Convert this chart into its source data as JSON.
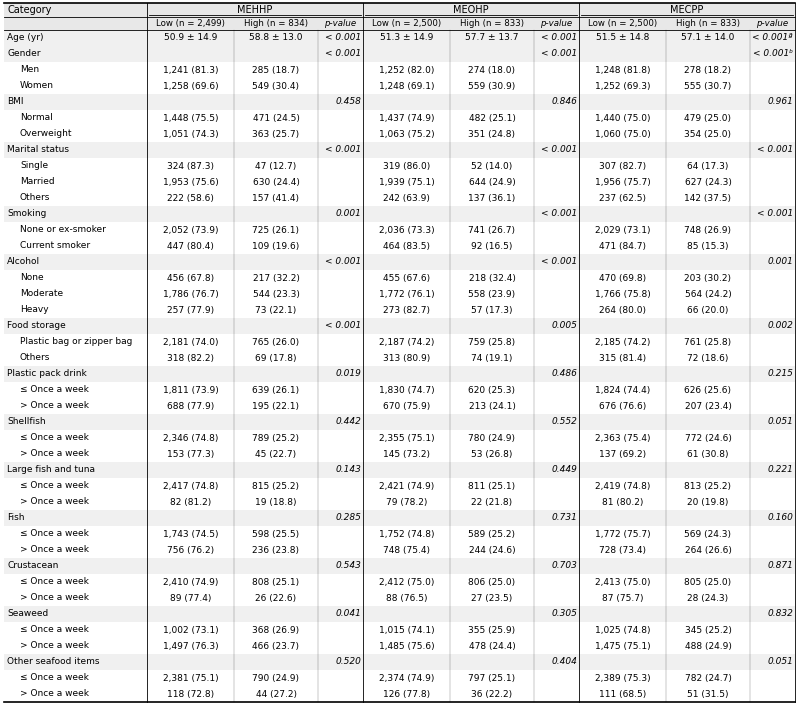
{
  "group_headers": [
    "MEHHP",
    "MEOHP",
    "MECPP"
  ],
  "sub_headers": [
    "Low (n = 2,499)",
    "High (n = 834)",
    "p-value",
    "Low (n = 2,500)",
    "High (n = 833)",
    "p-value",
    "Low (n = 2,500)",
    "High (n = 833)",
    "p-value"
  ],
  "rows": [
    {
      "label": "Age (yr)",
      "indent": 0,
      "data": [
        "50.9 ± 14.9",
        "58.8 ± 13.0",
        "< 0.001",
        "51.3 ± 14.9",
        "57.7 ± 13.7",
        "< 0.001",
        "51.5 ± 14.8",
        "57.1 ± 14.0",
        "< 0.001ª"
      ]
    },
    {
      "label": "Gender",
      "indent": 0,
      "data": [
        "",
        "",
        "< 0.001",
        "",
        "",
        "< 0.001",
        "",
        "",
        "< 0.001ᵇ"
      ]
    },
    {
      "label": "Men",
      "indent": 1,
      "data": [
        "1,241 (81.3)",
        "285 (18.7)",
        "",
        "1,252 (82.0)",
        "274 (18.0)",
        "",
        "1,248 (81.8)",
        "278 (18.2)",
        ""
      ]
    },
    {
      "label": "Women",
      "indent": 1,
      "data": [
        "1,258 (69.6)",
        "549 (30.4)",
        "",
        "1,248 (69.1)",
        "559 (30.9)",
        "",
        "1,252 (69.3)",
        "555 (30.7)",
        ""
      ]
    },
    {
      "label": "BMI",
      "indent": 0,
      "data": [
        "",
        "",
        "0.458",
        "",
        "",
        "0.846",
        "",
        "",
        "0.961"
      ]
    },
    {
      "label": "Normal",
      "indent": 1,
      "data": [
        "1,448 (75.5)",
        "471 (24.5)",
        "",
        "1,437 (74.9)",
        "482 (25.1)",
        "",
        "1,440 (75.0)",
        "479 (25.0)",
        ""
      ]
    },
    {
      "label": "Overweight",
      "indent": 1,
      "data": [
        "1,051 (74.3)",
        "363 (25.7)",
        "",
        "1,063 (75.2)",
        "351 (24.8)",
        "",
        "1,060 (75.0)",
        "354 (25.0)",
        ""
      ]
    },
    {
      "label": "Marital status",
      "indent": 0,
      "data": [
        "",
        "",
        "< 0.001",
        "",
        "",
        "< 0.001",
        "",
        "",
        "< 0.001"
      ]
    },
    {
      "label": "Single",
      "indent": 1,
      "data": [
        "324 (87.3)",
        "47 (12.7)",
        "",
        "319 (86.0)",
        "52 (14.0)",
        "",
        "307 (82.7)",
        "64 (17.3)",
        ""
      ]
    },
    {
      "label": "Married",
      "indent": 1,
      "data": [
        "1,953 (75.6)",
        "630 (24.4)",
        "",
        "1,939 (75.1)",
        "644 (24.9)",
        "",
        "1,956 (75.7)",
        "627 (24.3)",
        ""
      ]
    },
    {
      "label": "Others",
      "indent": 1,
      "data": [
        "222 (58.6)",
        "157 (41.4)",
        "",
        "242 (63.9)",
        "137 (36.1)",
        "",
        "237 (62.5)",
        "142 (37.5)",
        ""
      ]
    },
    {
      "label": "Smoking",
      "indent": 0,
      "data": [
        "",
        "",
        "0.001",
        "",
        "",
        "< 0.001",
        "",
        "",
        "< 0.001"
      ]
    },
    {
      "label": "None or ex-smoker",
      "indent": 1,
      "data": [
        "2,052 (73.9)",
        "725 (26.1)",
        "",
        "2,036 (73.3)",
        "741 (26.7)",
        "",
        "2,029 (73.1)",
        "748 (26.9)",
        ""
      ]
    },
    {
      "label": "Current smoker",
      "indent": 1,
      "data": [
        "447 (80.4)",
        "109 (19.6)",
        "",
        "464 (83.5)",
        "92 (16.5)",
        "",
        "471 (84.7)",
        "85 (15.3)",
        ""
      ]
    },
    {
      "label": "Alcohol",
      "indent": 0,
      "data": [
        "",
        "",
        "< 0.001",
        "",
        "",
        "< 0.001",
        "",
        "",
        "0.001"
      ]
    },
    {
      "label": "None",
      "indent": 1,
      "data": [
        "456 (67.8)",
        "217 (32.2)",
        "",
        "455 (67.6)",
        "218 (32.4)",
        "",
        "470 (69.8)",
        "203 (30.2)",
        ""
      ]
    },
    {
      "label": "Moderate",
      "indent": 1,
      "data": [
        "1,786 (76.7)",
        "544 (23.3)",
        "",
        "1,772 (76.1)",
        "558 (23.9)",
        "",
        "1,766 (75.8)",
        "564 (24.2)",
        ""
      ]
    },
    {
      "label": "Heavy",
      "indent": 1,
      "data": [
        "257 (77.9)",
        "73 (22.1)",
        "",
        "273 (82.7)",
        "57 (17.3)",
        "",
        "264 (80.0)",
        "66 (20.0)",
        ""
      ]
    },
    {
      "label": "Food storage",
      "indent": 0,
      "data": [
        "",
        "",
        "< 0.001",
        "",
        "",
        "0.005",
        "",
        "",
        "0.002"
      ]
    },
    {
      "label": "Plastic bag or zipper bag",
      "indent": 1,
      "data": [
        "2,181 (74.0)",
        "765 (26.0)",
        "",
        "2,187 (74.2)",
        "759 (25.8)",
        "",
        "2,185 (74.2)",
        "761 (25.8)",
        ""
      ]
    },
    {
      "label": "Others",
      "indent": 1,
      "data": [
        "318 (82.2)",
        "69 (17.8)",
        "",
        "313 (80.9)",
        "74 (19.1)",
        "",
        "315 (81.4)",
        "72 (18.6)",
        ""
      ]
    },
    {
      "label": "Plastic pack drink",
      "indent": 0,
      "data": [
        "",
        "",
        "0.019",
        "",
        "",
        "0.486",
        "",
        "",
        "0.215"
      ]
    },
    {
      "label": "≤ Once a week",
      "indent": 1,
      "data": [
        "1,811 (73.9)",
        "639 (26.1)",
        "",
        "1,830 (74.7)",
        "620 (25.3)",
        "",
        "1,824 (74.4)",
        "626 (25.6)",
        ""
      ]
    },
    {
      "label": "> Once a week",
      "indent": 1,
      "data": [
        "688 (77.9)",
        "195 (22.1)",
        "",
        "670 (75.9)",
        "213 (24.1)",
        "",
        "676 (76.6)",
        "207 (23.4)",
        ""
      ]
    },
    {
      "label": "Shellfish",
      "indent": 0,
      "data": [
        "",
        "",
        "0.442",
        "",
        "",
        "0.552",
        "",
        "",
        "0.051"
      ]
    },
    {
      "label": "≤ Once a week",
      "indent": 1,
      "data": [
        "2,346 (74.8)",
        "789 (25.2)",
        "",
        "2,355 (75.1)",
        "780 (24.9)",
        "",
        "2,363 (75.4)",
        "772 (24.6)",
        ""
      ]
    },
    {
      "label": "> Once a week",
      "indent": 1,
      "data": [
        "153 (77.3)",
        "45 (22.7)",
        "",
        "145 (73.2)",
        "53 (26.8)",
        "",
        "137 (69.2)",
        "61 (30.8)",
        ""
      ]
    },
    {
      "label": "Large fish and tuna",
      "indent": 0,
      "data": [
        "",
        "",
        "0.143",
        "",
        "",
        "0.449",
        "",
        "",
        "0.221"
      ]
    },
    {
      "label": "≤ Once a week",
      "indent": 1,
      "data": [
        "2,417 (74.8)",
        "815 (25.2)",
        "",
        "2,421 (74.9)",
        "811 (25.1)",
        "",
        "2,419 (74.8)",
        "813 (25.2)",
        ""
      ]
    },
    {
      "label": "> Once a week",
      "indent": 1,
      "data": [
        "82 (81.2)",
        "19 (18.8)",
        "",
        "79 (78.2)",
        "22 (21.8)",
        "",
        "81 (80.2)",
        "20 (19.8)",
        ""
      ]
    },
    {
      "label": "Fish",
      "indent": 0,
      "data": [
        "",
        "",
        "0.285",
        "",
        "",
        "0.731",
        "",
        "",
        "0.160"
      ]
    },
    {
      "label": "≤ Once a week",
      "indent": 1,
      "data": [
        "1,743 (74.5)",
        "598 (25.5)",
        "",
        "1,752 (74.8)",
        "589 (25.2)",
        "",
        "1,772 (75.7)",
        "569 (24.3)",
        ""
      ]
    },
    {
      "label": "> Once a week",
      "indent": 1,
      "data": [
        "756 (76.2)",
        "236 (23.8)",
        "",
        "748 (75.4)",
        "244 (24.6)",
        "",
        "728 (73.4)",
        "264 (26.6)",
        ""
      ]
    },
    {
      "label": "Crustacean",
      "indent": 0,
      "data": [
        "",
        "",
        "0.543",
        "",
        "",
        "0.703",
        "",
        "",
        "0.871"
      ]
    },
    {
      "label": "≤ Once a week",
      "indent": 1,
      "data": [
        "2,410 (74.9)",
        "808 (25.1)",
        "",
        "2,412 (75.0)",
        "806 (25.0)",
        "",
        "2,413 (75.0)",
        "805 (25.0)",
        ""
      ]
    },
    {
      "label": "> Once a week",
      "indent": 1,
      "data": [
        "89 (77.4)",
        "26 (22.6)",
        "",
        "88 (76.5)",
        "27 (23.5)",
        "",
        "87 (75.7)",
        "28 (24.3)",
        ""
      ]
    },
    {
      "label": "Seaweed",
      "indent": 0,
      "data": [
        "",
        "",
        "0.041",
        "",
        "",
        "0.305",
        "",
        "",
        "0.832"
      ]
    },
    {
      "label": "≤ Once a week",
      "indent": 1,
      "data": [
        "1,002 (73.1)",
        "368 (26.9)",
        "",
        "1,015 (74.1)",
        "355 (25.9)",
        "",
        "1,025 (74.8)",
        "345 (25.2)",
        ""
      ]
    },
    {
      "label": "> Once a week",
      "indent": 1,
      "data": [
        "1,497 (76.3)",
        "466 (23.7)",
        "",
        "1,485 (75.6)",
        "478 (24.4)",
        "",
        "1,475 (75.1)",
        "488 (24.9)",
        ""
      ]
    },
    {
      "label": "Other seafood items",
      "indent": 0,
      "data": [
        "",
        "",
        "0.520",
        "",
        "",
        "0.404",
        "",
        "",
        "0.051"
      ]
    },
    {
      "label": "≤ Once a week",
      "indent": 1,
      "data": [
        "2,381 (75.1)",
        "790 (24.9)",
        "",
        "2,374 (74.9)",
        "797 (25.1)",
        "",
        "2,389 (75.3)",
        "782 (24.7)",
        ""
      ]
    },
    {
      "label": "> Once a week",
      "indent": 1,
      "data": [
        "118 (72.8)",
        "44 (27.2)",
        "",
        "126 (77.8)",
        "36 (22.2)",
        "",
        "111 (68.5)",
        "51 (31.5)",
        ""
      ]
    }
  ],
  "font_size": 6.5,
  "header_font_size": 7.0,
  "superscript_size": 5.5
}
